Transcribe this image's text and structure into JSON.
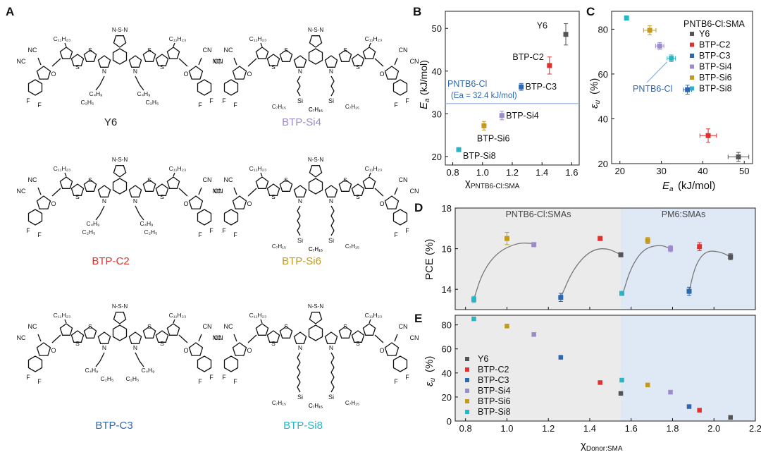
{
  "figure": {
    "panel_letters": [
      "A",
      "B",
      "C",
      "D",
      "E"
    ],
    "molecules": [
      {
        "name": "Y6",
        "color": "#222222",
        "side_chain": "C2H5 / C4H9 (branched)"
      },
      {
        "name": "BTP-Si4",
        "color": "#9b8bc9",
        "side_chain": "Si(C7H15)3"
      },
      {
        "name": "BTP-C2",
        "color": "#e0312f",
        "side_chain": "C2H5 / C4H9 (branched)"
      },
      {
        "name": "BTP-Si6",
        "color": "#c49a1c",
        "side_chain": "Si(C7H15)3"
      },
      {
        "name": "BTP-C3",
        "color": "#2e67b1",
        "side_chain": "C2H5 / C4H9 (branched)"
      },
      {
        "name": "BTP-Si8",
        "color": "#29b5c5",
        "side_chain": "Si(C7H15)3"
      }
    ],
    "mol_text": {
      "c11": "C₁₁H₂₃",
      "nc": "NC",
      "cn": "CN",
      "o": "O",
      "f": "F",
      "n": "N",
      "s": "S",
      "si": "Si",
      "c2h5": "C₂H₅",
      "c4h9": "C₄H₉",
      "c7h15": "C₇H₁₅"
    }
  },
  "chart_data": [
    {
      "panel": "B",
      "type": "scatter",
      "xlabel": "χPNTB6-Cl:SMA",
      "ylabel": "Ea (kJ/mol)",
      "xlim": [
        0.75,
        1.65
      ],
      "ylim": [
        18,
        54
      ],
      "xticks": [
        "0.8",
        "1.0",
        "1.2",
        "1.4",
        "1.6"
      ],
      "yticks": [
        "20",
        "30",
        "40",
        "50"
      ],
      "points": [
        {
          "label": "Y6",
          "x": 1.56,
          "y": 48.6,
          "err": 2.5,
          "color": "#555555"
        },
        {
          "label": "BTP-C2",
          "x": 1.45,
          "y": 41.3,
          "err": 2.0,
          "color": "#e0312f"
        },
        {
          "label": "BTP-C3",
          "x": 1.26,
          "y": 36.3,
          "err": 0.8,
          "color": "#2e67b1"
        },
        {
          "label": "BTP-Si4",
          "x": 1.13,
          "y": 29.6,
          "err": 1.0,
          "color": "#9b8bc9"
        },
        {
          "label": "BTP-Si6",
          "x": 1.01,
          "y": 27.2,
          "err": 1.0,
          "color": "#c49a1c"
        },
        {
          "label": "BTP-Si8",
          "x": 0.84,
          "y": 21.6,
          "err": 0.3,
          "color": "#29b5c5"
        }
      ],
      "reference_line": {
        "y": 32.4,
        "label": "PNTB6-Cl",
        "sublabel": "(Ea = 32.4 kJ/mol)",
        "color": "#2e67b1"
      }
    },
    {
      "panel": "C",
      "type": "scatter",
      "xlabel": "Ea (kJ/mol)",
      "ylabel": "εu (%)",
      "xlim": [
        18,
        52
      ],
      "ylim": [
        20,
        88
      ],
      "xticks": [
        "20",
        "30",
        "40",
        "50"
      ],
      "yticks": [
        "20",
        "40",
        "60",
        "80"
      ],
      "legend_title": "PNTB6-Cl:SMA",
      "legend_position": "top-right",
      "points": [
        {
          "label": "Y6",
          "x": 48.6,
          "y": 23.0,
          "xerr": 2.5,
          "yerr": 2.0,
          "color": "#555555"
        },
        {
          "label": "BTP-C2",
          "x": 41.3,
          "y": 32.5,
          "xerr": 2.0,
          "yerr": 3.0,
          "color": "#e0312f"
        },
        {
          "label": "BTP-C3",
          "x": 36.3,
          "y": 53.0,
          "xerr": 1.0,
          "yerr": 2.0,
          "color": "#2e67b1"
        },
        {
          "label": "BTP-Si4",
          "x": 29.6,
          "y": 72.5,
          "xerr": 1.0,
          "yerr": 1.5,
          "color": "#9b8bc9"
        },
        {
          "label": "BTP-Si6",
          "x": 27.2,
          "y": 79.5,
          "xerr": 1.5,
          "yerr": 2.0,
          "color": "#c49a1c"
        },
        {
          "label": "BTP-Si8",
          "x": 21.6,
          "y": 85.0,
          "xerr": 0.3,
          "yerr": 1.0,
          "color": "#29b5c5"
        },
        {
          "label": "PNTB6-Cl",
          "x": 32.4,
          "y": 67.0,
          "xerr": 1.0,
          "yerr": 1.5,
          "color": "#29b5c5"
        }
      ],
      "annotation": "PNTB6-Cl"
    },
    {
      "panel": "D",
      "type": "scatter",
      "xlabel": "",
      "ylabel": "PCE (%)",
      "xlim": [
        0.75,
        2.2
      ],
      "ylim": [
        13.0,
        18.0
      ],
      "yticks": [
        "14",
        "16",
        "18"
      ],
      "region_labels": [
        "PNTB6-Cl:SMAs",
        "PM6:SMAs"
      ],
      "region_split_x": 1.55,
      "series": [
        {
          "name": "PNTB6-Cl:SMAs",
          "points": [
            {
              "label": "BTP-Si8",
              "x": 0.84,
              "y": 13.5,
              "err": 0.15,
              "color": "#29b5c5"
            },
            {
              "label": "BTP-Si6",
              "x": 1.0,
              "y": 16.5,
              "err": 0.3,
              "color": "#c49a1c"
            },
            {
              "label": "BTP-Si4",
              "x": 1.13,
              "y": 16.2,
              "err": 0.1,
              "color": "#9b8bc9"
            },
            {
              "label": "BTP-C3",
              "x": 1.26,
              "y": 13.6,
              "err": 0.2,
              "color": "#2e67b1"
            },
            {
              "label": "BTP-C2",
              "x": 1.45,
              "y": 16.5,
              "err": 0.1,
              "color": "#e0312f"
            },
            {
              "label": "Y6",
              "x": 1.55,
              "y": 15.7,
              "err": 0.1,
              "color": "#555555"
            }
          ]
        },
        {
          "name": "PM6:SMAs",
          "points": [
            {
              "label": "BTP-Si8",
              "x": 1.555,
              "y": 13.8,
              "err": 0.1,
              "color": "#29b5c5"
            },
            {
              "label": "BTP-Si6",
              "x": 1.68,
              "y": 16.4,
              "err": 0.15,
              "color": "#c49a1c"
            },
            {
              "label": "BTP-Si4",
              "x": 1.79,
              "y": 16.0,
              "err": 0.15,
              "color": "#9b8bc9"
            },
            {
              "label": "BTP-C3",
              "x": 1.88,
              "y": 13.9,
              "err": 0.2,
              "color": "#2e67b1"
            },
            {
              "label": "BTP-C2",
              "x": 1.93,
              "y": 16.1,
              "err": 0.2,
              "color": "#e0312f"
            },
            {
              "label": "Y6",
              "x": 2.08,
              "y": 15.6,
              "err": 0.15,
              "color": "#555555"
            }
          ]
        }
      ],
      "trend_curves": [
        [
          [
            0.84,
            13.5
          ],
          [
            0.88,
            14.8
          ],
          [
            0.95,
            15.8
          ],
          [
            1.05,
            16.3
          ],
          [
            1.13,
            16.25
          ]
        ],
        [
          [
            1.26,
            13.6
          ],
          [
            1.32,
            15.0
          ],
          [
            1.4,
            15.9
          ],
          [
            1.48,
            16.05
          ],
          [
            1.55,
            15.7
          ]
        ],
        [
          [
            1.56,
            13.8
          ],
          [
            1.6,
            15.1
          ],
          [
            1.66,
            16.0
          ],
          [
            1.74,
            16.2
          ],
          [
            1.79,
            16.0
          ]
        ],
        [
          [
            1.88,
            13.9
          ],
          [
            1.91,
            15.2
          ],
          [
            1.96,
            15.9
          ],
          [
            2.03,
            15.85
          ],
          [
            2.08,
            15.6
          ]
        ]
      ]
    },
    {
      "panel": "E",
      "type": "scatter",
      "xlabel": "χDonor:SMA",
      "ylabel": "εu (%)",
      "xlim": [
        0.75,
        2.2
      ],
      "ylim": [
        0,
        88
      ],
      "xticks": [
        "0.8",
        "1.0",
        "1.2",
        "1.4",
        "1.6",
        "1.8",
        "2.0",
        "2.2"
      ],
      "yticks": [
        "0",
        "20",
        "40",
        "60",
        "80"
      ],
      "region_split_x": 1.55,
      "legend_position": "bottom-left",
      "legend": [
        "Y6",
        "BTP-C2",
        "BTP-C3",
        "BTP-Si4",
        "BTP-Si6",
        "BTP-Si8"
      ],
      "points": [
        {
          "label": "BTP-Si8",
          "x": 0.84,
          "y": 85,
          "color": "#29b5c5"
        },
        {
          "label": "BTP-Si6",
          "x": 1.0,
          "y": 79,
          "color": "#c49a1c"
        },
        {
          "label": "BTP-Si4",
          "x": 1.13,
          "y": 72,
          "color": "#9b8bc9"
        },
        {
          "label": "BTP-C3",
          "x": 1.26,
          "y": 53,
          "color": "#2e67b1"
        },
        {
          "label": "BTP-C2",
          "x": 1.45,
          "y": 32,
          "color": "#e0312f"
        },
        {
          "label": "Y6",
          "x": 1.55,
          "y": 23,
          "color": "#555555"
        },
        {
          "label": "BTP-Si8",
          "x": 1.555,
          "y": 34,
          "color": "#29b5c5"
        },
        {
          "label": "BTP-Si6",
          "x": 1.68,
          "y": 30,
          "color": "#c49a1c"
        },
        {
          "label": "BTP-Si4",
          "x": 1.79,
          "y": 24,
          "color": "#9b8bc9"
        },
        {
          "label": "BTP-C3",
          "x": 1.88,
          "y": 12,
          "color": "#2e67b1"
        },
        {
          "label": "BTP-C2",
          "x": 1.93,
          "y": 9,
          "color": "#e0312f"
        },
        {
          "label": "Y6",
          "x": 2.08,
          "y": 3,
          "color": "#555555"
        }
      ]
    }
  ]
}
